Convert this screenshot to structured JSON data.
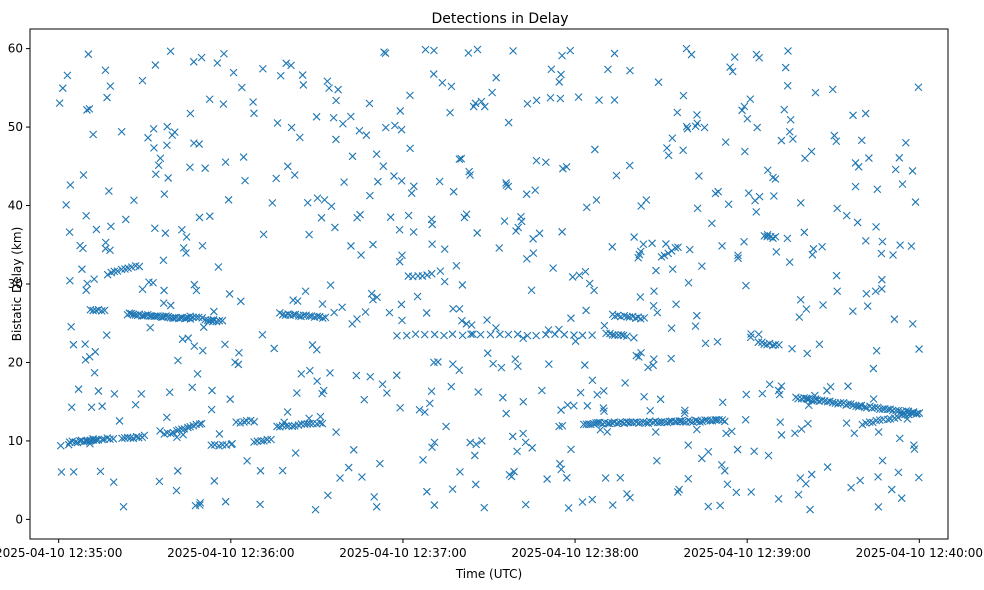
{
  "chart_data": {
    "type": "scatter",
    "title": "Detections in Delay",
    "xlabel": "Time (UTC)",
    "ylabel": "Bistatic Delay (km)",
    "marker": "x",
    "color": "#1f77b4",
    "xlim_seconds": [
      -10,
      310
    ],
    "ylim": [
      -2.5,
      62.5
    ],
    "x_ticks": [
      {
        "value": 0,
        "label": "2025-04-10 12:35:00"
      },
      {
        "value": 60,
        "label": "2025-04-10 12:36:00"
      },
      {
        "value": 120,
        "label": "2025-04-10 12:37:00"
      },
      {
        "value": 180,
        "label": "2025-04-10 12:38:00"
      },
      {
        "value": 240,
        "label": "2025-04-10 12:39:00"
      },
      {
        "value": 300,
        "label": "2025-04-10 12:40:00"
      }
    ],
    "y_ticks": [
      0,
      10,
      20,
      30,
      40,
      50,
      60
    ],
    "tracks": [
      {
        "t_start": 4,
        "t_end": 13,
        "y_start": 9.8,
        "y_end": 10.2,
        "count": 12
      },
      {
        "t_start": 10,
        "t_end": 19,
        "y_start": 10.1,
        "y_end": 10.3,
        "count": 10
      },
      {
        "t_start": 22,
        "t_end": 30,
        "y_start": 10.3,
        "y_end": 10.6,
        "count": 9
      },
      {
        "t_start": 37,
        "t_end": 50,
        "y_start": 10.8,
        "y_end": 12.3,
        "count": 14
      },
      {
        "t_start": 53,
        "t_end": 60,
        "y_start": 9.4,
        "y_end": 9.6,
        "count": 6
      },
      {
        "t_start": 62,
        "t_end": 68,
        "y_start": 12.4,
        "y_end": 12.5,
        "count": 6
      },
      {
        "t_start": 68,
        "t_end": 74,
        "y_start": 9.8,
        "y_end": 10.2,
        "count": 6
      },
      {
        "t_start": 76,
        "t_end": 92,
        "y_start": 11.8,
        "y_end": 12.3,
        "count": 16
      },
      {
        "t_start": 183,
        "t_end": 232,
        "y_start": 12.2,
        "y_end": 12.6,
        "count": 60
      },
      {
        "t_start": 280,
        "t_end": 299,
        "y_start": 12.2,
        "y_end": 13.5,
        "count": 16
      },
      {
        "t_start": 257,
        "t_end": 300,
        "y_start": 15.5,
        "y_end": 13.5,
        "count": 48
      },
      {
        "t_start": 24,
        "t_end": 46,
        "y_start": 26.2,
        "y_end": 25.6,
        "count": 32
      },
      {
        "t_start": 46,
        "t_end": 57,
        "y_start": 25.8,
        "y_end": 25.2,
        "count": 12
      },
      {
        "t_start": 11,
        "t_end": 16,
        "y_start": 26.7,
        "y_end": 26.6,
        "count": 6
      },
      {
        "t_start": 77,
        "t_end": 93,
        "y_start": 26.2,
        "y_end": 25.7,
        "count": 18
      },
      {
        "t_start": 118,
        "t_end": 186,
        "y_start": 23.5,
        "y_end": 23.5,
        "count": 22
      },
      {
        "t_start": 193,
        "t_end": 204,
        "y_start": 26.0,
        "y_end": 25.6,
        "count": 12
      },
      {
        "t_start": 191,
        "t_end": 198,
        "y_start": 23.6,
        "y_end": 23.4,
        "count": 8
      },
      {
        "t_start": 17,
        "t_end": 28,
        "y_start": 31.3,
        "y_end": 32.3,
        "count": 10
      },
      {
        "t_start": 244,
        "t_end": 251,
        "y_start": 22.5,
        "y_end": 22.2,
        "count": 8
      },
      {
        "t_start": 246,
        "t_end": 250,
        "y_start": 36.1,
        "y_end": 35.9,
        "count": 5
      },
      {
        "t_start": 122,
        "t_end": 130,
        "y_start": 31.0,
        "y_end": 31.2,
        "count": 6
      },
      {
        "t_start": 210,
        "t_end": 216,
        "y_start": 33.5,
        "y_end": 34.8,
        "count": 6
      }
    ],
    "background_noise": {
      "t_range": [
        0,
        300
      ],
      "y_range": [
        1,
        60
      ],
      "count": 650,
      "seed": 20250410
    }
  }
}
